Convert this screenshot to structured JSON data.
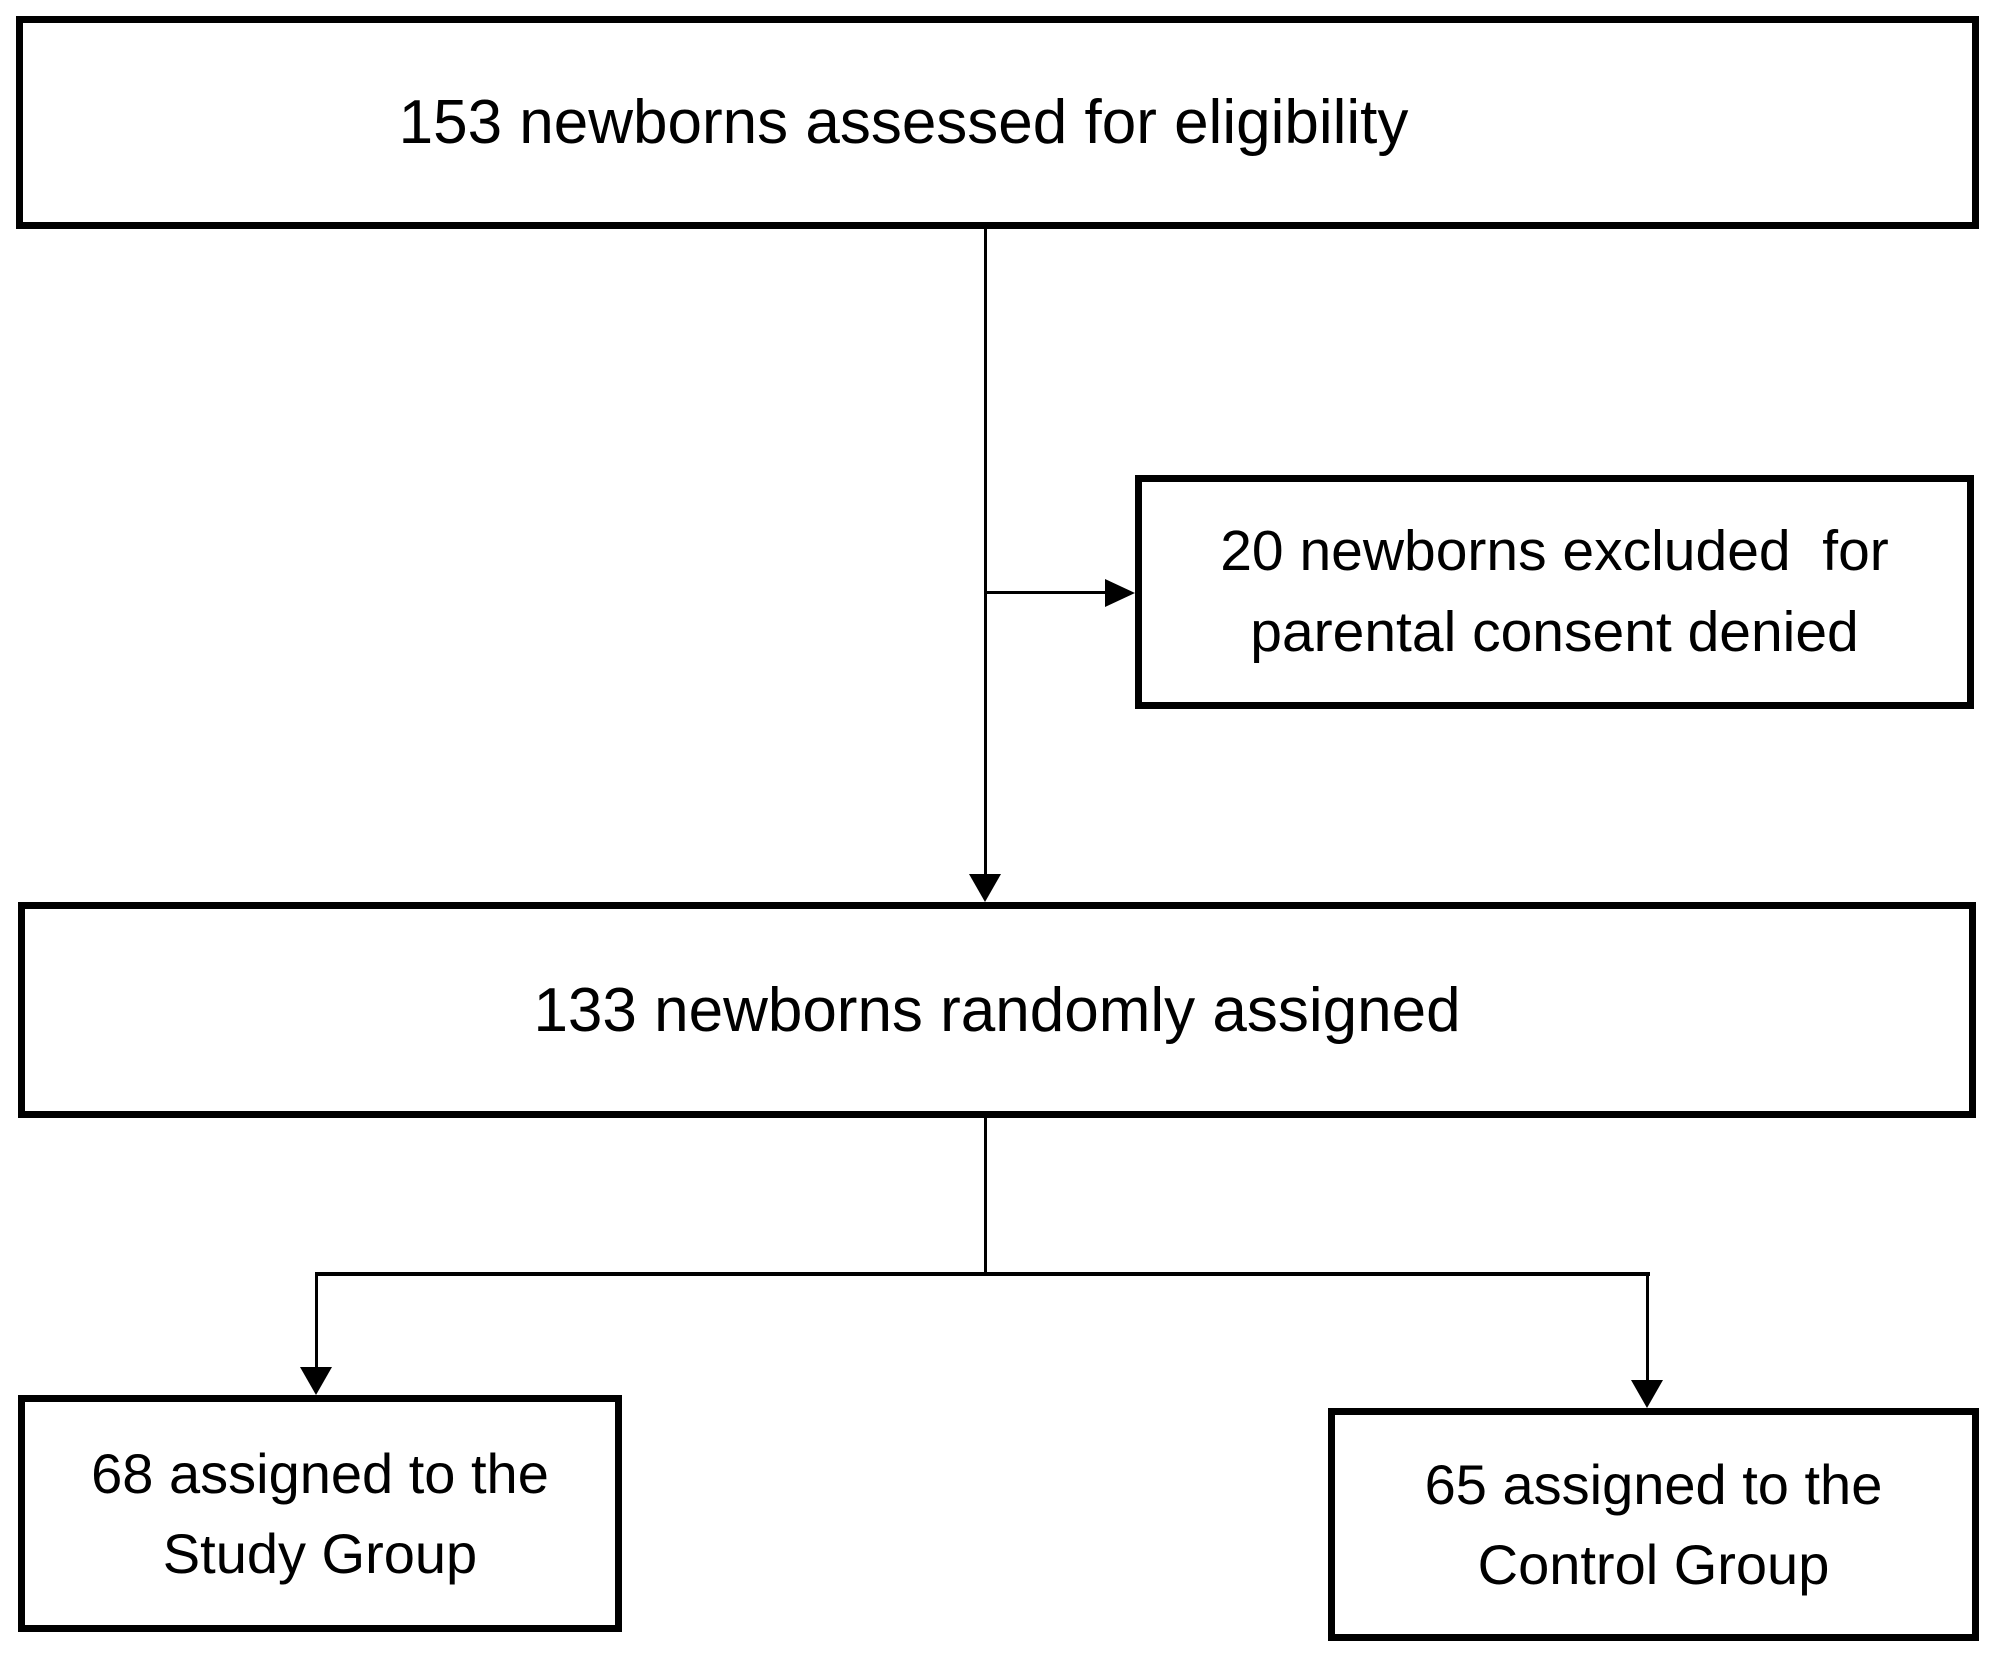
{
  "diagram": {
    "type": "flowchart",
    "background_color": "#ffffff",
    "box_border_color": "#000000",
    "text_color": "#000000",
    "nodes": {
      "eligibility": {
        "label": "153 newborns assessed for eligibility"
      },
      "excluded": {
        "lines": [
          "20 newborns excluded  for",
          "parental consent denied"
        ]
      },
      "randomized": {
        "label": "133 newborns randomly assigned"
      },
      "study_group": {
        "lines": [
          "68 assigned to the",
          "Study Group"
        ]
      },
      "control_group": {
        "lines": [
          "65 assigned to the",
          "Control Group"
        ]
      }
    },
    "edges": [
      {
        "from": "eligibility",
        "to": "randomized",
        "style": "arrow-down"
      },
      {
        "from": "eligibility",
        "to": "excluded",
        "style": "arrow-right"
      },
      {
        "from": "randomized",
        "to": "study_group",
        "style": "arrow-down"
      },
      {
        "from": "randomized",
        "to": "control_group",
        "style": "arrow-down"
      }
    ]
  }
}
